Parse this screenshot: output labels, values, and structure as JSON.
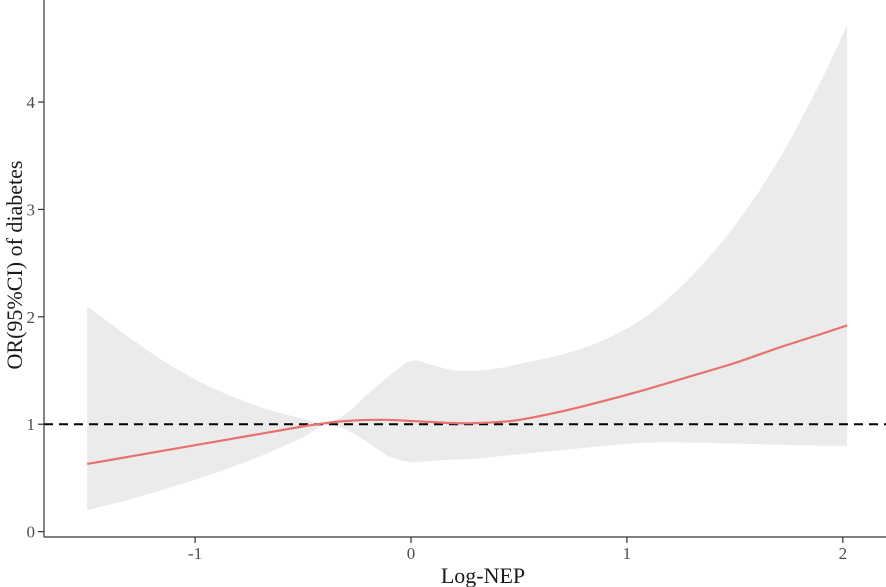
{
  "chart_data": {
    "type": "line",
    "title": "",
    "xlabel": "Log-NEP",
    "ylabel": "OR(95%CI) of diabetes",
    "xlim": [
      -1.7,
      2.2
    ],
    "ylim": [
      -0.05,
      4.95
    ],
    "x_ticks": [
      -1,
      0,
      1,
      2
    ],
    "x_tick_labels": [
      "-1",
      "0",
      "1",
      "2"
    ],
    "y_ticks": [
      0,
      1,
      2,
      3,
      4
    ],
    "y_tick_labels": [
      "0",
      "1",
      "2",
      "3",
      "4"
    ],
    "grid": false,
    "reference_line": {
      "y": 1,
      "style": "dashed",
      "color": "#000000"
    },
    "series": [
      {
        "type": "line",
        "color": "#e8716e",
        "x": [
          -1.5,
          -1.3,
          -1.1,
          -0.9,
          -0.7,
          -0.5,
          -0.4,
          -0.3,
          -0.2,
          -0.1,
          0.0,
          0.1,
          0.2,
          0.3,
          0.4,
          0.5,
          0.7,
          0.9,
          1.1,
          1.3,
          1.5,
          1.7,
          1.9,
          2.02
        ],
        "y": [
          0.63,
          0.7,
          0.77,
          0.84,
          0.91,
          0.98,
          1.01,
          1.03,
          1.04,
          1.04,
          1.03,
          1.02,
          1.01,
          1.01,
          1.02,
          1.04,
          1.12,
          1.22,
          1.33,
          1.45,
          1.57,
          1.71,
          1.84,
          1.92
        ]
      },
      {
        "type": "area",
        "color": "#ebebeb",
        "x": [
          -1.5,
          -1.3,
          -1.1,
          -0.9,
          -0.7,
          -0.5,
          -0.4,
          -0.3,
          -0.2,
          -0.1,
          0.0,
          0.1,
          0.2,
          0.3,
          0.4,
          0.5,
          0.7,
          0.9,
          1.1,
          1.3,
          1.5,
          1.7,
          1.9,
          2.02
        ],
        "lower": [
          0.2,
          0.3,
          0.42,
          0.55,
          0.7,
          0.88,
          0.99,
          0.95,
          0.83,
          0.7,
          0.65,
          0.66,
          0.67,
          0.68,
          0.7,
          0.72,
          0.76,
          0.8,
          0.83,
          0.83,
          0.82,
          0.81,
          0.8,
          0.8
        ],
        "upper": [
          2.1,
          1.8,
          1.53,
          1.32,
          1.16,
          1.05,
          1.01,
          1.1,
          1.28,
          1.45,
          1.59,
          1.55,
          1.5,
          1.5,
          1.52,
          1.56,
          1.65,
          1.79,
          2.02,
          2.38,
          2.85,
          3.45,
          4.2,
          4.72
        ]
      }
    ]
  }
}
